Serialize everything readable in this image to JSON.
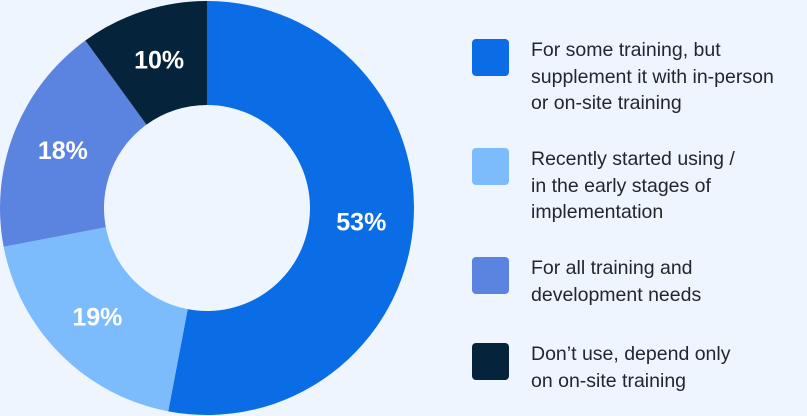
{
  "chart_data": {
    "type": "pie",
    "variant": "donut",
    "title": "",
    "legend_position": "right",
    "slices": [
      {
        "label": "For some training, but\nsupplement it with in-person\nor on-site training",
        "value": 53,
        "value_label": "53%",
        "color": "#0a6de6",
        "label_color": "#ffffff"
      },
      {
        "label": "Recently started using /\nin the early stages of\nimplementation",
        "value": 19,
        "value_label": "19%",
        "color": "#7cbcfc",
        "label_color": "#ffffff"
      },
      {
        "label": "For all training and\ndevelopment needs",
        "value": 18,
        "value_label": "18%",
        "color": "#5b84e1",
        "label_color": "#ffffff"
      },
      {
        "label": "Don’t use, depend only\non on-site training",
        "value": 10,
        "value_label": "10%",
        "color": "#05233a",
        "label_color": "#ffffff"
      }
    ]
  }
}
